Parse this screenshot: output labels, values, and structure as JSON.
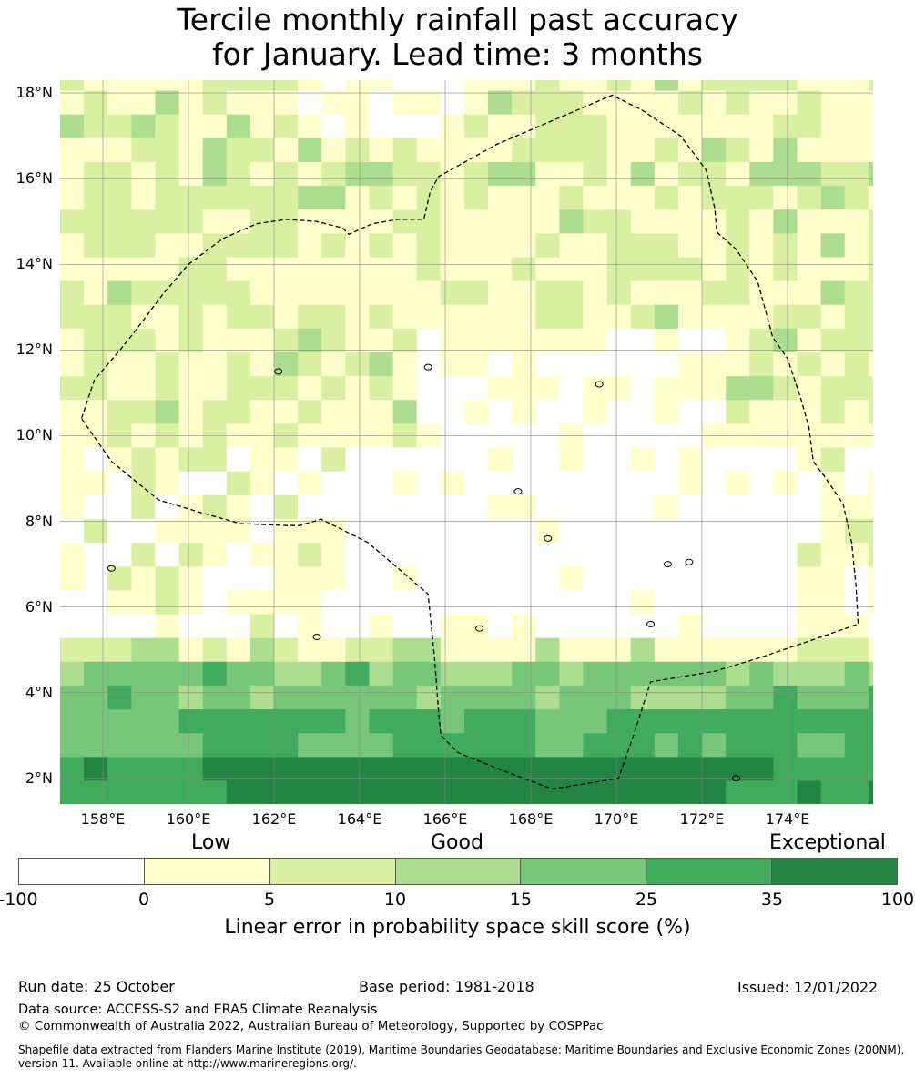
{
  "title": {
    "line1": "Tercile monthly rainfall past accuracy",
    "line2": "for January. Lead time: 3 months"
  },
  "map": {
    "lat_ticks": [
      "18°N",
      "16°N",
      "14°N",
      "12°N",
      "10°N",
      "8°N",
      "6°N",
      "4°N",
      "2°N"
    ],
    "lat_values": [
      18,
      16,
      14,
      12,
      10,
      8,
      6,
      4,
      2
    ],
    "lon_ticks": [
      "158°E",
      "160°E",
      "162°E",
      "164°E",
      "166°E",
      "168°E",
      "170°E",
      "172°E",
      "174°E"
    ],
    "lon_values": [
      158,
      160,
      162,
      164,
      166,
      168,
      170,
      172,
      174
    ],
    "lon_range": [
      157,
      176
    ],
    "lat_range": [
      1.4,
      18.3
    ],
    "grid_step_deg": 0.5556,
    "eez_boundary_lonlat": [
      [
        157.5,
        10.4
      ],
      [
        157.8,
        11.3
      ],
      [
        158.4,
        12.0
      ],
      [
        158.8,
        12.5
      ],
      [
        159.4,
        13.3
      ],
      [
        160.0,
        14.0
      ],
      [
        160.8,
        14.6
      ],
      [
        161.6,
        14.95
      ],
      [
        162.3,
        15.05
      ],
      [
        163.0,
        15.0
      ],
      [
        163.6,
        14.85
      ],
      [
        163.75,
        14.7
      ],
      [
        164.3,
        14.95
      ],
      [
        164.9,
        15.05
      ],
      [
        165.5,
        15.05
      ],
      [
        165.65,
        15.7
      ],
      [
        165.85,
        16.05
      ],
      [
        167.2,
        16.8
      ],
      [
        169.9,
        17.95
      ],
      [
        170.6,
        17.6
      ],
      [
        171.5,
        17.0
      ],
      [
        172.1,
        16.2
      ],
      [
        172.3,
        15.3
      ],
      [
        172.35,
        14.75
      ],
      [
        172.8,
        14.35
      ],
      [
        173.3,
        13.6
      ],
      [
        173.6,
        12.5
      ],
      [
        173.65,
        12.3
      ],
      [
        174.0,
        11.8
      ],
      [
        174.3,
        10.9
      ],
      [
        174.5,
        10.2
      ],
      [
        174.6,
        9.4
      ],
      [
        174.9,
        9.0
      ],
      [
        175.3,
        8.4
      ],
      [
        175.5,
        7.5
      ],
      [
        175.6,
        6.5
      ],
      [
        175.65,
        5.6
      ],
      [
        174.5,
        5.2
      ],
      [
        173.3,
        4.8
      ],
      [
        172.3,
        4.5
      ],
      [
        170.8,
        4.25
      ],
      [
        170.4,
        3.0
      ],
      [
        170.05,
        2.0
      ],
      [
        168.5,
        1.75
      ],
      [
        167.3,
        2.2
      ],
      [
        166.3,
        2.6
      ],
      [
        165.9,
        3.0
      ],
      [
        165.85,
        3.5
      ],
      [
        165.75,
        4.8
      ],
      [
        165.6,
        6.3
      ],
      [
        164.2,
        7.5
      ],
      [
        163.1,
        8.05
      ],
      [
        162.6,
        7.9
      ],
      [
        162.3,
        7.9
      ],
      [
        161.2,
        7.95
      ],
      [
        160.3,
        8.2
      ],
      [
        159.3,
        8.5
      ],
      [
        158.2,
        9.4
      ],
      [
        157.5,
        10.4
      ]
    ]
  },
  "colorbar": {
    "category_labels": [
      "Low",
      "Good",
      "Exceptional"
    ],
    "tick_labels": [
      "-100",
      "0",
      "5",
      "10",
      "15",
      "25",
      "35",
      "100"
    ],
    "colors": [
      "#ffffff",
      "#ffffcc",
      "#d9f0a3",
      "#addd8e",
      "#78c679",
      "#41ab5d",
      "#238443"
    ],
    "title": "Linear error in probability space skill score (%)"
  },
  "footer": {
    "run_date": "Run date: 25 October",
    "base_period": "Base period: 1981-2018",
    "issued": "Issued: 12/01/2022",
    "data_source": "Data source: ACCESS-S2 and ERA5 Climate Reanalysis",
    "copyright": "© Commonwealth of Australia 2022, Australian Bureau of Meteorology, Supported by COSPPac",
    "shapefile_line1": "Shapefile data extracted from Flanders Marine Institute (2019), Maritime Boundaries Geodatabase: Maritime Boundaries and Exclusive Economic Zones (200NM),",
    "shapefile_line2": "version 11. Available online at http://www.marineregions.org/."
  }
}
